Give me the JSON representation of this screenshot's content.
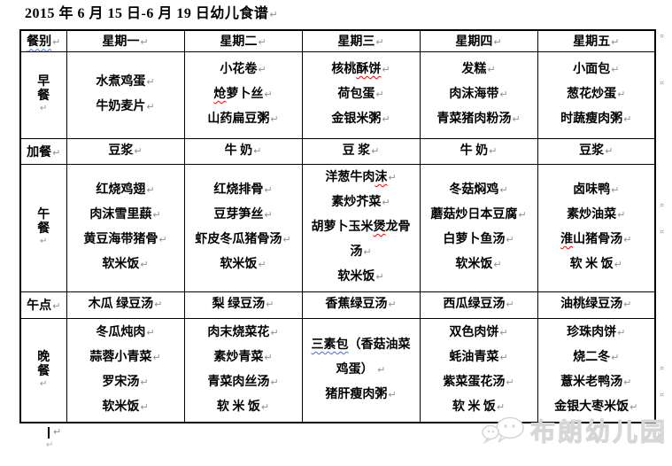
{
  "title": "2015 年 6 月 15 日-6 月 19 日幼儿食谱",
  "table": {
    "header": [
      {
        "t": "餐别",
        "w": "blue",
        "s": "餐别"
      },
      "星期一",
      "星期二",
      "星期三",
      "星期四",
      "星期五"
    ],
    "rows": [
      {
        "meal": "早餐",
        "vertical": true,
        "cells": [
          [
            "水煮鸡蛋",
            "牛奶麦片"
          ],
          [
            "小花卷",
            {
              "t": "炝萝卜丝",
              "w": "red",
              "s": "炝"
            },
            "山药扁豆粥"
          ],
          [
            {
              "t": "核桃酥饼",
              "w": "red",
              "s": "酥饼"
            },
            "荷包蛋",
            "金银米粥"
          ],
          [
            "发糕",
            "肉沫海带",
            "青菜猪肉粉汤"
          ],
          [
            "小面包",
            "葱花炒蛋",
            "时蔬瘦肉粥"
          ]
        ]
      },
      {
        "meal": "加餐",
        "vertical": false,
        "cells": [
          [
            "豆浆"
          ],
          [
            "牛 奶"
          ],
          [
            "豆 浆"
          ],
          [
            "牛 奶"
          ],
          [
            "豆浆"
          ]
        ]
      },
      {
        "meal": "午餐",
        "vertical": true,
        "cells": [
          [
            "红烧鸡翅",
            "肉沫雪里蕻",
            "黄豆海带猪骨",
            "软米饭"
          ],
          [
            "红烧排骨",
            "豆芽笋丝",
            "虾皮冬瓜猪骨汤",
            "软米饭"
          ],
          [
            {
              "t": "洋葱牛肉沫",
              "w": "red",
              "s": "沫"
            },
            "素炒芥菜",
            {
              "t": "胡萝卜玉米煲龙骨",
              "w": "red",
              "s": "煲",
              "nl": false
            },
            "汤",
            "软米饭"
          ],
          [
            "冬菇焖鸡",
            "蘑菇炒日本豆腐",
            "白萝卜鱼汤",
            "软米饭"
          ],
          [
            "卤味鸭",
            "素炒油菜",
            {
              "t": "淮山猪骨汤",
              "w": "red",
              "s": "淮"
            },
            "软 米 饭"
          ]
        ]
      },
      {
        "meal": "午点",
        "vertical": false,
        "cells": [
          [
            "木瓜 绿豆汤"
          ],
          [
            "梨 绿豆汤"
          ],
          [
            "香蕉绿豆汤"
          ],
          [
            "西瓜绿豆汤"
          ],
          [
            "油桃绿豆汤"
          ]
        ]
      },
      {
        "meal": "晚餐",
        "vertical": true,
        "cells": [
          [
            "冬瓜炖肉",
            "蒜蓉小青菜",
            "罗宋汤",
            "软米饭"
          ],
          [
            "肉末烧菜花",
            "素炒青菜",
            "青菜肉丝汤",
            "软 米 饭"
          ],
          [
            {
              "t": "三素包（香菇油菜",
              "w": "blue",
              "s": "三素包",
              "nl": false
            },
            "鸡蛋） ",
            "猪肝瘦肉粥"
          ],
          [
            "双色肉饼",
            "蚝油青菜",
            "紫菜蛋花汤",
            "软 米 饭"
          ],
          [
            "珍珠肉饼",
            "烧二冬",
            "薏米老鸭汤",
            "金银大枣米饭"
          ]
        ]
      }
    ]
  },
  "marks": {
    "pilcrow": "↵",
    "row_end": "¤"
  },
  "watermark": {
    "text": "布朗幼儿园",
    "icon": "wechat-bubbles-icon"
  },
  "colors": {
    "wavy_red": "#ff0000",
    "wavy_blue": "#3b6bff",
    "watermark_gray": "#d6d6d6"
  }
}
